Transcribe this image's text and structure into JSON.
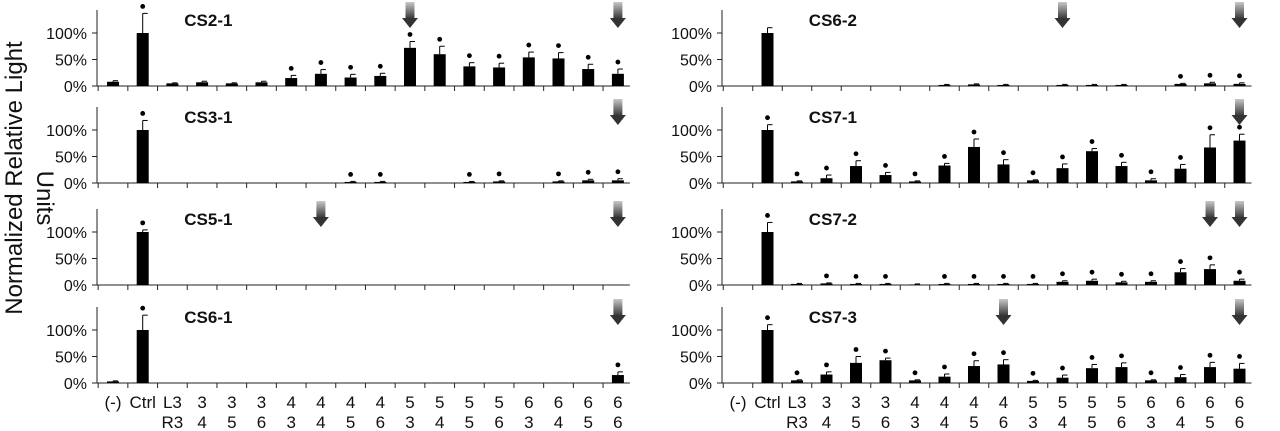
{
  "figure": {
    "ylabel_line1": "Normalized Relative Light",
    "ylabel_line2": "Units"
  },
  "chart_data": {
    "type": "bar",
    "ylabel": "Normalized Relative Light Units",
    "y_ticks": [
      "100%",
      "50%",
      "0%"
    ],
    "ylim": [
      0,
      1.3
    ],
    "categories": [
      {
        "line1": "(-)",
        "line2": ""
      },
      {
        "line1": "Ctrl",
        "line2": ""
      },
      {
        "line1": "L3",
        "line2": "R3"
      },
      {
        "line1": "3",
        "line2": "4"
      },
      {
        "line1": "3",
        "line2": "5"
      },
      {
        "line1": "3",
        "line2": "6"
      },
      {
        "line1": "4",
        "line2": "3"
      },
      {
        "line1": "4",
        "line2": "4"
      },
      {
        "line1": "4",
        "line2": "5"
      },
      {
        "line1": "4",
        "line2": "6"
      },
      {
        "line1": "5",
        "line2": "3"
      },
      {
        "line1": "5",
        "line2": "4"
      },
      {
        "line1": "5",
        "line2": "5"
      },
      {
        "line1": "5",
        "line2": "6"
      },
      {
        "line1": "6",
        "line2": "3"
      },
      {
        "line1": "6",
        "line2": "4"
      },
      {
        "line1": "6",
        "line2": "5"
      },
      {
        "line1": "6",
        "line2": "6"
      }
    ],
    "panels": [
      {
        "name": "CS2-1",
        "values": [
          0.08,
          1.0,
          0.05,
          0.07,
          0.05,
          0.07,
          0.15,
          0.23,
          0.16,
          0.19,
          0.72,
          0.6,
          0.37,
          0.35,
          0.54,
          0.52,
          0.32,
          0.23
        ],
        "errors": [
          0.02,
          0.37,
          0.01,
          0.02,
          0.01,
          0.02,
          0.05,
          0.08,
          0.06,
          0.05,
          0.12,
          0.15,
          0.07,
          0.08,
          0.1,
          0.11,
          0.09,
          0.09
        ],
        "sig": [
          false,
          true,
          false,
          false,
          false,
          false,
          true,
          true,
          true,
          true,
          true,
          true,
          true,
          true,
          true,
          true,
          true,
          true
        ],
        "arrows": [
          10,
          17
        ]
      },
      {
        "name": "CS3-1",
        "values": [
          0,
          1.0,
          0,
          0,
          0,
          0,
          0,
          0,
          0.02,
          0.02,
          0,
          0,
          0.02,
          0.03,
          0,
          0.03,
          0.05,
          0.05
        ],
        "errors": [
          0,
          0.18,
          0,
          0,
          0,
          0,
          0,
          0,
          0.01,
          0.01,
          0,
          0,
          0.01,
          0.01,
          0,
          0.01,
          0.02,
          0.03
        ],
        "sig": [
          false,
          true,
          false,
          false,
          false,
          false,
          false,
          false,
          true,
          true,
          false,
          false,
          true,
          true,
          false,
          true,
          true,
          true
        ],
        "arrows": [
          17
        ]
      },
      {
        "name": "CS5-1",
        "values": [
          0,
          1.0,
          0,
          0,
          0,
          0,
          0,
          0,
          0,
          0,
          0,
          0,
          0,
          0,
          0,
          0,
          0,
          0
        ],
        "errors": [
          0,
          0.04,
          0,
          0,
          0,
          0,
          0,
          0,
          0,
          0,
          0,
          0,
          0,
          0,
          0,
          0,
          0,
          0
        ],
        "sig": [
          false,
          true,
          false,
          false,
          false,
          false,
          false,
          false,
          false,
          false,
          false,
          false,
          false,
          false,
          false,
          false,
          false,
          false
        ],
        "arrows": [
          7,
          17
        ]
      },
      {
        "name": "CS6-1",
        "values": [
          0.03,
          1.0,
          0,
          0,
          0,
          0,
          0,
          0,
          0,
          0,
          0,
          0,
          0,
          0,
          0,
          0,
          0,
          0.15
        ],
        "errors": [
          0.01,
          0.28,
          0,
          0,
          0,
          0,
          0,
          0,
          0,
          0,
          0,
          0,
          0,
          0,
          0,
          0,
          0,
          0.06
        ],
        "sig": [
          false,
          true,
          false,
          false,
          false,
          false,
          false,
          false,
          false,
          false,
          false,
          false,
          false,
          false,
          false,
          false,
          false,
          true
        ],
        "arrows": [
          17
        ]
      },
      {
        "name": "CS6-2",
        "values": [
          0,
          1.0,
          0,
          0,
          0,
          0,
          0,
          0.02,
          0.03,
          0.02,
          0,
          0.02,
          0.02,
          0.02,
          0,
          0.04,
          0.05,
          0.04
        ],
        "errors": [
          0,
          0.1,
          0,
          0,
          0,
          0,
          0,
          0.01,
          0.01,
          0.01,
          0,
          0.01,
          0.01,
          0.01,
          0,
          0.01,
          0.02,
          0.02
        ],
        "sig": [
          false,
          false,
          false,
          false,
          false,
          false,
          false,
          false,
          false,
          false,
          false,
          false,
          false,
          false,
          false,
          true,
          true,
          true
        ],
        "arrows": [
          11,
          17
        ]
      },
      {
        "name": "CS7-1",
        "values": [
          0,
          1.0,
          0.03,
          0.09,
          0.32,
          0.15,
          0.03,
          0.33,
          0.68,
          0.35,
          0.05,
          0.28,
          0.6,
          0.32,
          0.05,
          0.27,
          0.67,
          0.8
        ],
        "errors": [
          0,
          0.1,
          0.01,
          0.06,
          0.1,
          0.05,
          0.01,
          0.04,
          0.15,
          0.09,
          0.01,
          0.08,
          0.05,
          0.07,
          0.03,
          0.08,
          0.24,
          0.12
        ],
        "sig": [
          false,
          true,
          true,
          true,
          true,
          true,
          true,
          true,
          true,
          true,
          true,
          true,
          true,
          true,
          true,
          true,
          true,
          true
        ],
        "arrows": [
          17
        ]
      },
      {
        "name": "CS7-2",
        "values": [
          0,
          1.0,
          0.02,
          0.03,
          0.02,
          0.02,
          0.01,
          0.02,
          0.02,
          0.02,
          0.02,
          0.06,
          0.08,
          0.05,
          0.06,
          0.24,
          0.3,
          0.08
        ],
        "errors": [
          0,
          0.18,
          0.01,
          0.01,
          0.01,
          0.01,
          0.01,
          0.01,
          0.01,
          0.01,
          0.01,
          0.02,
          0.03,
          0.02,
          0.02,
          0.07,
          0.08,
          0.03
        ],
        "sig": [
          false,
          true,
          false,
          true,
          true,
          true,
          false,
          true,
          true,
          true,
          true,
          true,
          true,
          true,
          true,
          true,
          true,
          true
        ],
        "arrows": [
          16,
          17
        ]
      },
      {
        "name": "CS7-3",
        "values": [
          0,
          1.0,
          0.05,
          0.16,
          0.38,
          0.43,
          0.05,
          0.12,
          0.32,
          0.35,
          0.04,
          0.1,
          0.28,
          0.3,
          0.05,
          0.11,
          0.3,
          0.27
        ],
        "errors": [
          0,
          0.1,
          0.01,
          0.05,
          0.12,
          0.04,
          0.01,
          0.05,
          0.1,
          0.09,
          0.01,
          0.05,
          0.07,
          0.08,
          0.01,
          0.05,
          0.09,
          0.1
        ],
        "sig": [
          false,
          true,
          true,
          true,
          true,
          true,
          true,
          true,
          true,
          true,
          true,
          true,
          true,
          true,
          true,
          true,
          true,
          true
        ],
        "arrows": [
          9,
          17
        ]
      }
    ]
  }
}
